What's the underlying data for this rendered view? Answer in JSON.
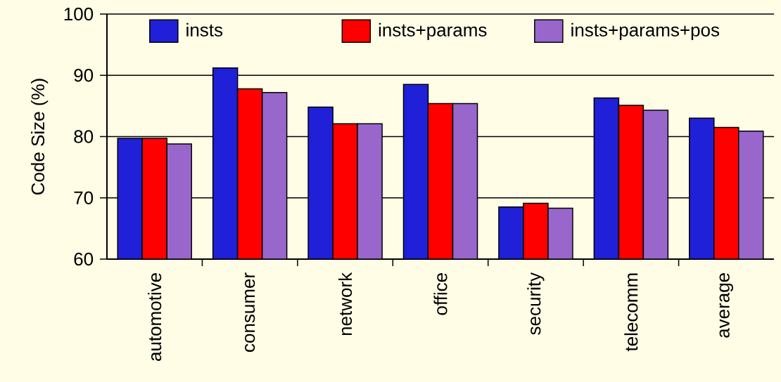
{
  "chart_data": {
    "type": "bar",
    "ylabel": "Code Size (%)",
    "categories": [
      "automotive",
      "consumer",
      "network",
      "office",
      "security",
      "telecomm",
      "average"
    ],
    "series": [
      {
        "name": "insts",
        "color": "#2020d8",
        "values": [
          79.7,
          91.2,
          84.8,
          88.5,
          68.5,
          86.3,
          83.0
        ]
      },
      {
        "name": "insts+params",
        "color": "#ff0000",
        "values": [
          79.7,
          87.8,
          82.1,
          85.4,
          69.1,
          85.1,
          81.5
        ]
      },
      {
        "name": "insts+params+pos",
        "color": "#9966cc",
        "values": [
          78.8,
          87.2,
          82.1,
          85.4,
          68.3,
          84.3,
          80.9
        ]
      }
    ],
    "ylim": [
      60,
      100
    ],
    "yticks": [
      60,
      70,
      80,
      90,
      100
    ],
    "grid": "y",
    "legend": "top"
  }
}
